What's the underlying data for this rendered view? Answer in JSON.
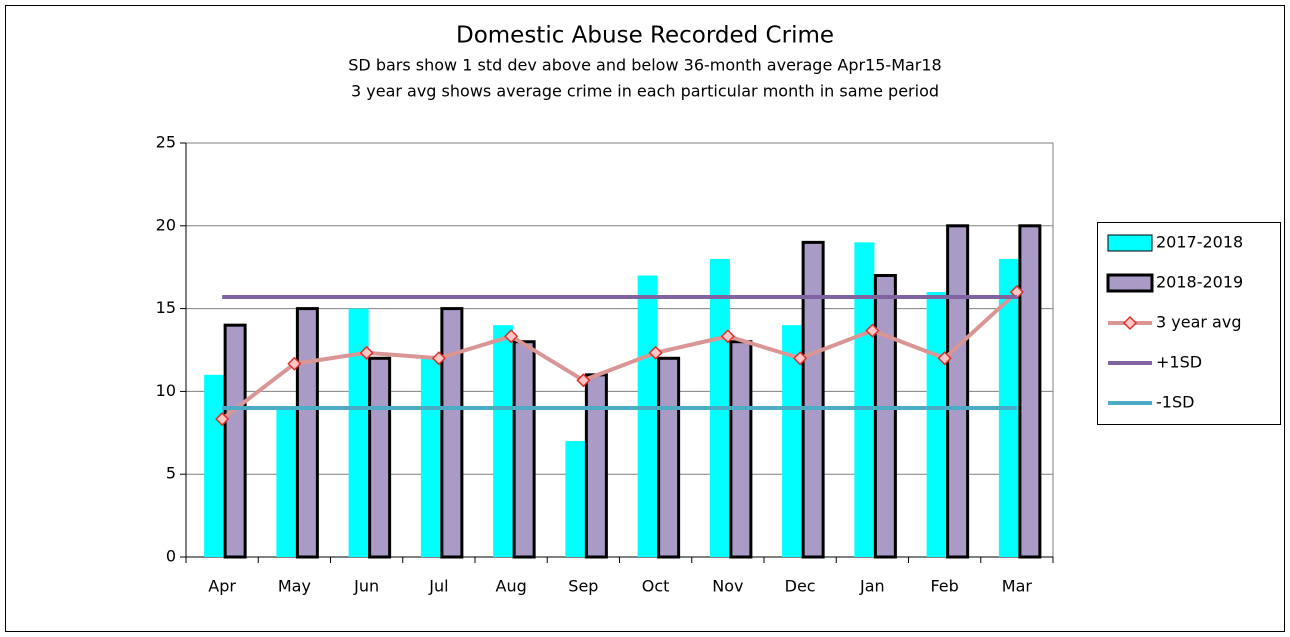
{
  "chart_data": {
    "type": "bar",
    "title": "Domestic Abuse Recorded Crime",
    "subtitle": [
      "SD bars show 1 std dev above and below 36-month average  Apr15-Mar18",
      "3 year avg shows average crime in each particular month in same period"
    ],
    "categories": [
      "Apr",
      "May",
      "Jun",
      "Jul",
      "Aug",
      "Sep",
      "Oct",
      "Nov",
      "Dec",
      "Jan",
      "Feb",
      "Mar"
    ],
    "series": [
      {
        "name": "2017-2018",
        "type": "bar",
        "color": "#00ffff",
        "values": [
          11,
          9,
          15,
          12,
          14,
          7,
          17,
          18,
          14,
          19,
          16,
          18
        ]
      },
      {
        "name": "2018-2019",
        "type": "bar",
        "color": "#a99bc5",
        "values": [
          14,
          15,
          12,
          15,
          13,
          11,
          12,
          13,
          19,
          17,
          20,
          20
        ]
      },
      {
        "name": "3 year avg",
        "type": "line",
        "color": "#d99694",
        "marker": "diamond",
        "values": [
          8.33,
          11.67,
          12.33,
          12,
          13.33,
          10.67,
          12.33,
          13.33,
          12,
          13.67,
          12,
          16
        ]
      },
      {
        "name": "+1SD",
        "type": "line",
        "color": "#8064a2",
        "values": [
          15.7,
          15.7,
          15.7,
          15.7,
          15.7,
          15.7,
          15.7,
          15.7,
          15.7,
          15.7,
          15.7,
          15.7
        ]
      },
      {
        "name": "-1SD",
        "type": "line",
        "color": "#4bacc6",
        "values": [
          9,
          9,
          9,
          9,
          9,
          9,
          9,
          9,
          9,
          9,
          9,
          9
        ]
      }
    ],
    "ylim": [
      0,
      25
    ],
    "yticks": [
      0,
      5,
      10,
      15,
      20,
      25
    ],
    "grid": true,
    "legend": "right"
  }
}
